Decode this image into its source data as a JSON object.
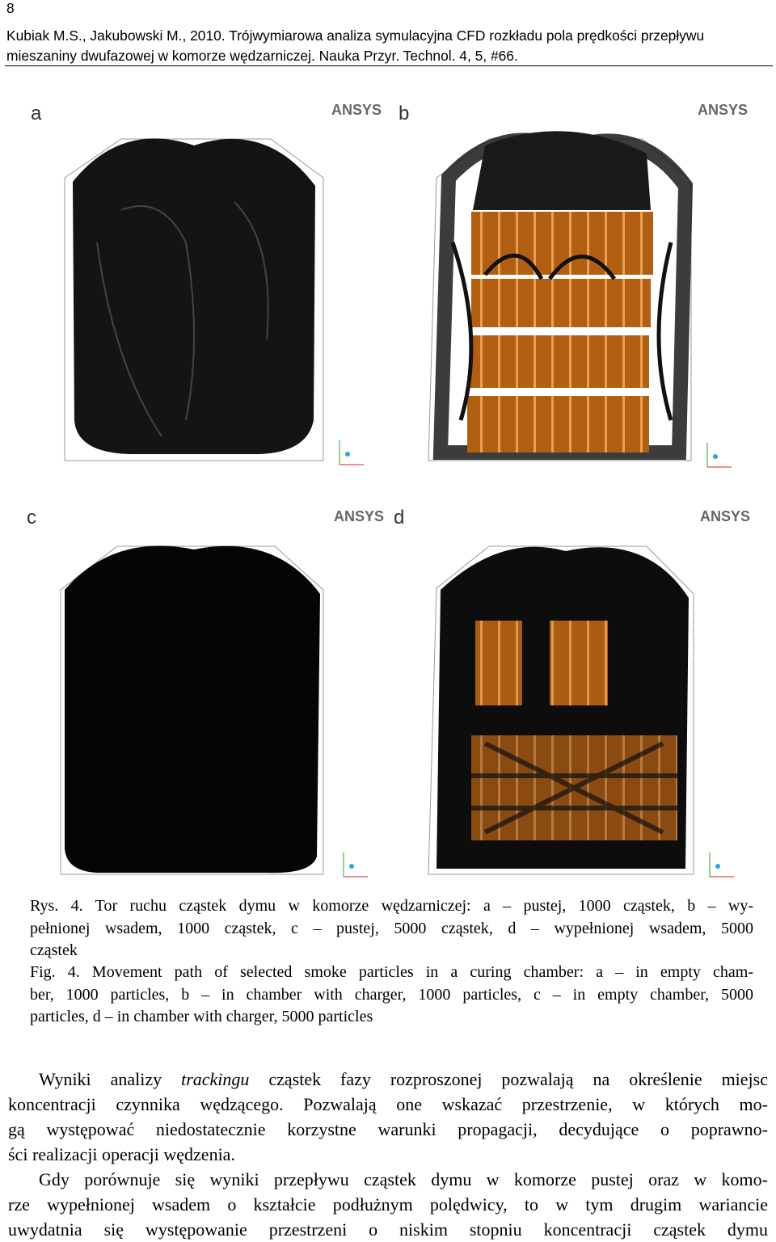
{
  "header": {
    "page_number": "8",
    "citation_lines": [
      "Kubiak M.S., Jakubowski M., 2010. Trójwymiarowa analiza symulacyjna CFD rozkładu pola prędkości przepływu",
      "mieszaniny dwufazowej w komorze wędzarniczej. Nauka Przyr. Technol. 4, 5, #66."
    ]
  },
  "figure": {
    "panels": [
      {
        "label": "a",
        "logo": "ANSYS"
      },
      {
        "label": "b",
        "logo": "ANSYS"
      },
      {
        "label": "c",
        "logo": "ANSYS"
      },
      {
        "label": "d",
        "logo": "ANSYS"
      }
    ],
    "caption_pl": [
      "Rys. 4. Tor ruchu cząstek dymu w komorze wędzarniczej: a – pustej, 1000 cząstek, b – wy-",
      "pełnionej wsadem, 1000 cząstek, c – pustej, 5000 cząstek, d – wypełnionej wsadem, 5000",
      "cząstek"
    ],
    "caption_en": [
      "Fig. 4. Movement path of selected smoke particles in a curing chamber: a – in empty cham-",
      "ber, 1000 particles, b – in chamber with charger, 1000 particles, c – in empty chamber, 5000",
      "particles, d – in chamber with charger, 5000 particles"
    ]
  },
  "body": {
    "paragraph_1": {
      "first_line": [
        "Wyniki analizy ",
        "trackingu",
        " cząstek fazy rozproszonej pozwalają na określenie miejsc"
      ],
      "lines": [
        "koncentracji czynnika wędzącego. Pozwalają one wskazać przestrzenie, w których mo-",
        "gą występować niedostatecznie korzystne warunki propagacji, decydujące o poprawno-",
        "ści realizacji operacji wędzenia."
      ]
    },
    "paragraph_2": {
      "lines": [
        "Gdy porównuje się wyniki przepływu cząstek dymu w komorze pustej oraz w komo-",
        "rze wypełnionej wsadem o kształcie podłużnym polędwicy, to w tym drugim wariancie",
        "uwydatnia się występowanie przestrzeni o niskim stopniu koncentracji cząstek dymu"
      ]
    }
  }
}
